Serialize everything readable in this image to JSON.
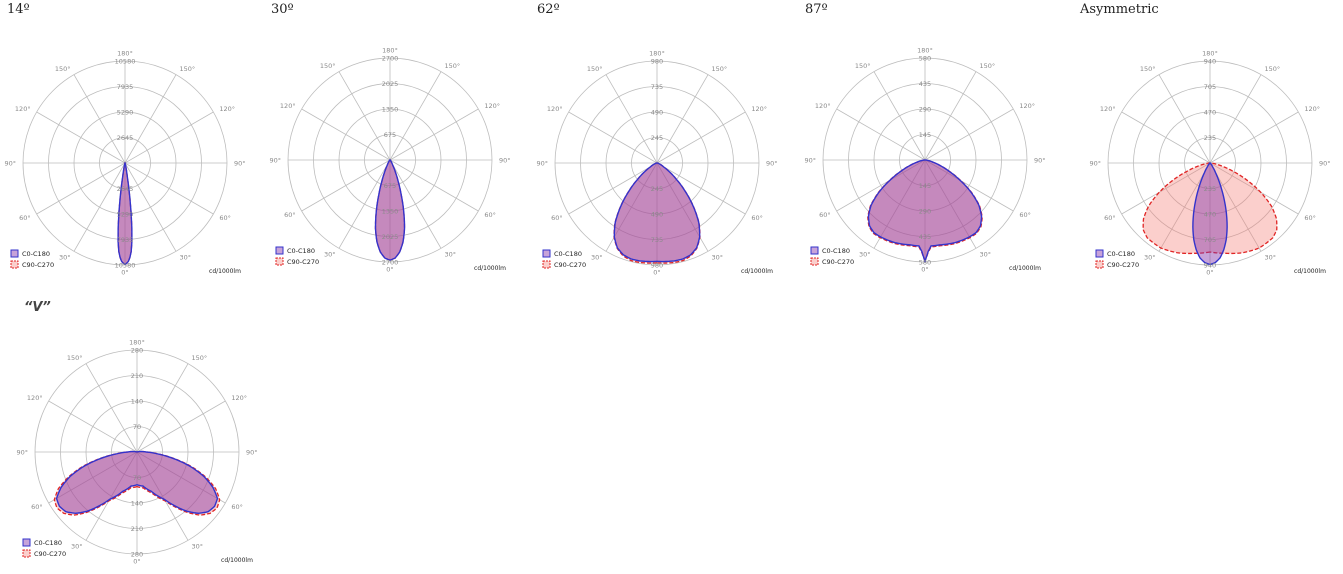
{
  "colors": {
    "c0": "#3333cc",
    "c0_fill": "rgba(130,50,170,0.45)",
    "c90": "#e02525",
    "c90_fill": "rgba(245,130,120,0.38)",
    "grid": "#bdbdbd"
  },
  "angle_labels": {
    "top": "180°",
    "upper_left": "150°",
    "upper_right": "150°",
    "mid_left": "120°",
    "mid_right": "120°",
    "side_left": "90°",
    "side_right": "90°",
    "low_left": "60°",
    "low_right": "60°",
    "bottom_left": "30°",
    "bottom_right": "30°",
    "bottom": "0°"
  },
  "legend": {
    "c0": "C0-C180",
    "c90": "C90-C270"
  },
  "unit": "cd/1000lm",
  "chart_data": [
    {
      "type": "polar",
      "title": "14º",
      "rings": [
        "2645",
        "5290",
        "7935",
        "10580"
      ],
      "rmax": 10580,
      "series": [
        {
          "name": "C0-C180",
          "profile": [
            [
              0,
              10500
            ],
            [
              1,
              10400
            ],
            [
              2,
              10200
            ],
            [
              3,
              9800
            ],
            [
              4,
              9200
            ],
            [
              5,
              8200
            ],
            [
              6,
              6800
            ],
            [
              7,
              5200
            ],
            [
              8,
              3600
            ],
            [
              9,
              2200
            ],
            [
              10,
              1200
            ],
            [
              12,
              500
            ],
            [
              15,
              150
            ],
            [
              20,
              50
            ],
            [
              30,
              10
            ],
            [
              90,
              0
            ]
          ]
        },
        {
          "name": "C90-C270",
          "profile": [
            [
              0,
              10500
            ],
            [
              1,
              10400
            ],
            [
              2,
              10200
            ],
            [
              3,
              9800
            ],
            [
              4,
              9200
            ],
            [
              5,
              8200
            ],
            [
              6,
              6800
            ],
            [
              7,
              5200
            ],
            [
              8,
              3600
            ],
            [
              9,
              2200
            ],
            [
              10,
              1200
            ],
            [
              12,
              500
            ],
            [
              15,
              150
            ],
            [
              20,
              50
            ],
            [
              30,
              10
            ],
            [
              90,
              0
            ]
          ]
        }
      ]
    },
    {
      "type": "polar",
      "title": "30º",
      "rings": [
        "675",
        "1350",
        "2025",
        "2700"
      ],
      "rmax": 2700,
      "series": [
        {
          "name": "C0-C180",
          "profile": [
            [
              0,
              2650
            ],
            [
              3,
              2600
            ],
            [
              6,
              2450
            ],
            [
              9,
              2200
            ],
            [
              12,
              1850
            ],
            [
              15,
              1400
            ],
            [
              18,
              950
            ],
            [
              21,
              600
            ],
            [
              24,
              350
            ],
            [
              28,
              150
            ],
            [
              35,
              50
            ],
            [
              50,
              10
            ],
            [
              90,
              0
            ]
          ]
        },
        {
          "name": "C90-C270",
          "profile": [
            [
              0,
              2650
            ],
            [
              3,
              2600
            ],
            [
              6,
              2450
            ],
            [
              9,
              2200
            ],
            [
              12,
              1850
            ],
            [
              15,
              1400
            ],
            [
              18,
              950
            ],
            [
              21,
              600
            ],
            [
              24,
              350
            ],
            [
              28,
              150
            ],
            [
              35,
              50
            ],
            [
              50,
              10
            ],
            [
              90,
              0
            ]
          ]
        }
      ]
    },
    {
      "type": "polar",
      "title": "62º",
      "rings": [
        "245",
        "490",
        "735",
        "980"
      ],
      "rmax": 980,
      "series": [
        {
          "name": "C0-C180",
          "profile": [
            [
              0,
              945
            ],
            [
              5,
              950
            ],
            [
              10,
              955
            ],
            [
              15,
              955
            ],
            [
              20,
              940
            ],
            [
              25,
              900
            ],
            [
              30,
              820
            ],
            [
              35,
              700
            ],
            [
              40,
              540
            ],
            [
              45,
              380
            ],
            [
              50,
              240
            ],
            [
              55,
              140
            ],
            [
              60,
              70
            ],
            [
              70,
              20
            ],
            [
              90,
              0
            ]
          ]
        },
        {
          "name": "C90-C270",
          "profile": [
            [
              0,
              960
            ],
            [
              5,
              965
            ],
            [
              10,
              970
            ],
            [
              15,
              970
            ],
            [
              20,
              950
            ],
            [
              25,
              905
            ],
            [
              30,
              825
            ],
            [
              35,
              705
            ],
            [
              40,
              545
            ],
            [
              45,
              385
            ],
            [
              50,
              245
            ],
            [
              55,
              140
            ],
            [
              60,
              70
            ],
            [
              70,
              20
            ],
            [
              90,
              0
            ]
          ]
        }
      ]
    },
    {
      "type": "polar",
      "title": "87º",
      "rings": [
        "145",
        "290",
        "435",
        "580"
      ],
      "rmax": 580,
      "series": [
        {
          "name": "C0-C180",
          "profile": [
            [
              0,
              575
            ],
            [
              2,
              520
            ],
            [
              4,
              490
            ],
            [
              10,
              490
            ],
            [
              20,
              500
            ],
            [
              30,
              505
            ],
            [
              35,
              505
            ],
            [
              40,
              490
            ],
            [
              45,
              455
            ],
            [
              50,
              400
            ],
            [
              55,
              320
            ],
            [
              60,
              230
            ],
            [
              65,
              150
            ],
            [
              70,
              90
            ],
            [
              75,
              45
            ],
            [
              80,
              20
            ],
            [
              90,
              0
            ]
          ]
        },
        {
          "name": "C90-C270",
          "profile": [
            [
              0,
              575
            ],
            [
              2,
              525
            ],
            [
              4,
              495
            ],
            [
              10,
              495
            ],
            [
              20,
              505
            ],
            [
              30,
              510
            ],
            [
              35,
              510
            ],
            [
              40,
              495
            ],
            [
              45,
              460
            ],
            [
              50,
              405
            ],
            [
              55,
              325
            ],
            [
              60,
              235
            ],
            [
              65,
              155
            ],
            [
              70,
              92
            ],
            [
              75,
              46
            ],
            [
              80,
              20
            ],
            [
              90,
              0
            ]
          ]
        }
      ]
    },
    {
      "type": "polar",
      "title": "Asymmetric",
      "rings": [
        "235",
        "470",
        "705",
        "940"
      ],
      "rmax": 940,
      "series": [
        {
          "name": "C0-C180",
          "profile": [
            [
              0,
              935
            ],
            [
              3,
              920
            ],
            [
              6,
              880
            ],
            [
              9,
              810
            ],
            [
              12,
              720
            ],
            [
              15,
              610
            ],
            [
              18,
              490
            ],
            [
              21,
              370
            ],
            [
              24,
              260
            ],
            [
              27,
              170
            ],
            [
              30,
              100
            ],
            [
              35,
              40
            ],
            [
              45,
              10
            ],
            [
              90,
              0
            ]
          ]
        },
        {
          "name": "C90-C270",
          "profile": [
            [
              0,
              820
            ],
            [
              10,
              845
            ],
            [
              20,
              880
            ],
            [
              30,
              905
            ],
            [
              40,
              900
            ],
            [
              45,
              870
            ],
            [
              50,
              800
            ],
            [
              55,
              690
            ],
            [
              60,
              540
            ],
            [
              65,
              380
            ],
            [
              70,
              230
            ],
            [
              75,
              120
            ],
            [
              80,
              50
            ],
            [
              90,
              0
            ]
          ]
        }
      ]
    },
    {
      "type": "polar",
      "title": "“V”",
      "rings": [
        "70",
        "140",
        "210",
        "280"
      ],
      "rmax": 280,
      "series": [
        {
          "name": "C0-C180",
          "profile": [
            [
              0,
              90
            ],
            [
              10,
              95
            ],
            [
              20,
              115
            ],
            [
              30,
              150
            ],
            [
              35,
              180
            ],
            [
              40,
              212
            ],
            [
              45,
              238
            ],
            [
              50,
              255
            ],
            [
              55,
              260
            ],
            [
              60,
              255
            ],
            [
              65,
              230
            ],
            [
              70,
              195
            ],
            [
              75,
              150
            ],
            [
              80,
              100
            ],
            [
              85,
              55
            ],
            [
              90,
              25
            ],
            [
              100,
              5
            ],
            [
              110,
              0
            ]
          ]
        },
        {
          "name": "C90-C270",
          "profile": [
            [
              0,
              95
            ],
            [
              10,
              100
            ],
            [
              20,
              120
            ],
            [
              30,
              155
            ],
            [
              35,
              185
            ],
            [
              40,
              217
            ],
            [
              45,
              245
            ],
            [
              50,
              262
            ],
            [
              55,
              268
            ],
            [
              60,
              262
            ],
            [
              65,
              238
            ],
            [
              70,
              200
            ],
            [
              75,
              155
            ],
            [
              80,
              103
            ],
            [
              85,
              57
            ],
            [
              90,
              26
            ],
            [
              100,
              5
            ],
            [
              110,
              0
            ]
          ]
        }
      ]
    }
  ]
}
